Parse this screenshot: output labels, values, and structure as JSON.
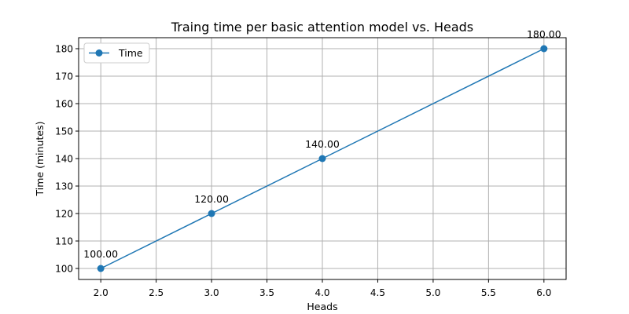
{
  "chart_data": {
    "type": "line",
    "title": "Traing time per basic attention model vs. Heads",
    "xlabel": "Heads",
    "ylabel": "Time (minutes)",
    "xlim": [
      1.8,
      6.2
    ],
    "ylim": [
      96,
      184
    ],
    "xticks": [
      2.0,
      2.5,
      3.0,
      3.5,
      4.0,
      4.5,
      5.0,
      5.5,
      6.0
    ],
    "yticks": [
      100,
      110,
      120,
      130,
      140,
      150,
      160,
      170,
      180
    ],
    "grid": true,
    "legend_position": "top-left",
    "series": [
      {
        "name": "Time",
        "color": "#1f77b4",
        "marker": "circle",
        "x": [
          2,
          3,
          4,
          6
        ],
        "y": [
          100,
          120,
          140,
          180
        ],
        "labels": [
          "100.00",
          "120.00",
          "140.00",
          "180.00"
        ]
      }
    ]
  }
}
